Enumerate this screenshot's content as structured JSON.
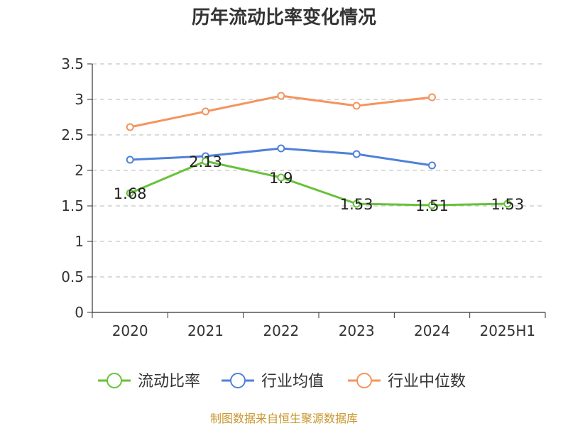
{
  "chart_data": {
    "type": "line",
    "title": "历年流动比率变化情况",
    "xlabel": "",
    "ylabel": "",
    "categories": [
      "2020",
      "2021",
      "2022",
      "2023",
      "2024",
      "2025H1"
    ],
    "ylim": [
      0,
      3.5
    ],
    "yticks": [
      0,
      0.5,
      1,
      1.5,
      2,
      2.5,
      3,
      3.5
    ],
    "ytick_labels": [
      "0",
      "0.5",
      "1",
      "1.5",
      "2",
      "2.5",
      "3",
      "3.5"
    ],
    "grid": "horizontal-dashed",
    "legend_position": "bottom",
    "series": [
      {
        "name": "流动比率",
        "color": "#67c23a",
        "values": [
          1.68,
          2.13,
          1.9,
          1.53,
          1.51,
          1.53
        ],
        "labels": [
          "1.68",
          "2.13",
          "1.9",
          "1.53",
          "1.51",
          "1.53"
        ]
      },
      {
        "name": "行业均值",
        "color": "#4f81d9",
        "values": [
          2.15,
          2.2,
          2.31,
          2.23,
          2.07,
          null
        ]
      },
      {
        "name": "行业中位数",
        "color": "#f4945e",
        "values": [
          2.61,
          2.83,
          3.05,
          2.91,
          3.03,
          null
        ]
      }
    ]
  },
  "source": "制图数据来自恒生聚源数据库"
}
